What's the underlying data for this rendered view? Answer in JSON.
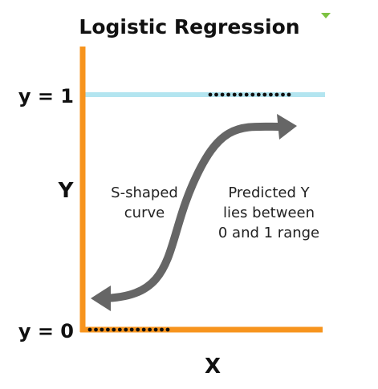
{
  "diagram": {
    "title": "Logistic Regression",
    "y_axis_name": "Y",
    "x_axis_name": "X",
    "y_one_label": "y = 1",
    "y_zero_label": "y = 0",
    "left_note": [
      "S-shaped",
      "curve"
    ],
    "right_note": [
      "Predicted Y",
      "lies between",
      "0 and 1 range"
    ]
  },
  "colors": {
    "axis": "#f7941d",
    "upper_bound_line": "#b3e5f0",
    "curve": "#666666",
    "dots": "#111111",
    "corner_marker": "#7dc242"
  }
}
